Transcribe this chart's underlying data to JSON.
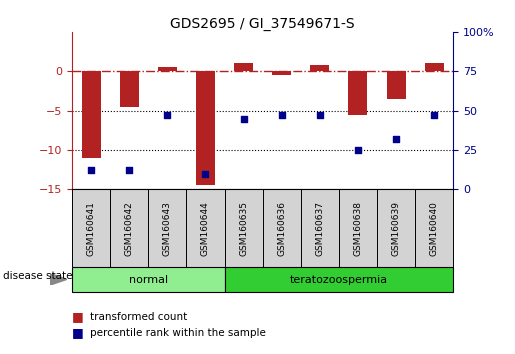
{
  "title": "GDS2695 / GI_37549671-S",
  "samples": [
    "GSM160641",
    "GSM160642",
    "GSM160643",
    "GSM160644",
    "GSM160635",
    "GSM160636",
    "GSM160637",
    "GSM160638",
    "GSM160639",
    "GSM160640"
  ],
  "groups": [
    "normal",
    "normal",
    "normal",
    "normal",
    "teratozoospermia",
    "teratozoospermia",
    "teratozoospermia",
    "teratozoospermia",
    "teratozoospermia",
    "teratozoospermia"
  ],
  "transformed_count": [
    -11.0,
    -4.5,
    0.5,
    -14.5,
    1.0,
    -0.5,
    0.8,
    -5.5,
    -3.5,
    1.0
  ],
  "percentile_rank": [
    12,
    12,
    47,
    10,
    45,
    47,
    47,
    25,
    32,
    47
  ],
  "left_ylim": [
    -15,
    5
  ],
  "left_yticks": [
    0,
    -5,
    -10,
    -15
  ],
  "right_ylim": [
    0,
    100
  ],
  "right_yticks": [
    0,
    25,
    50,
    75,
    100
  ],
  "bar_color": "#b22222",
  "dot_color": "#00008b",
  "hline_color": "#b22222",
  "normal_color": "#90ee90",
  "terato_color": "#32cd32",
  "group_label": "disease state",
  "legend1_label": "transformed count",
  "legend2_label": "percentile rank within the sample",
  "normal_label": "normal",
  "terato_label": "teratozoospermia",
  "bar_width": 0.5
}
